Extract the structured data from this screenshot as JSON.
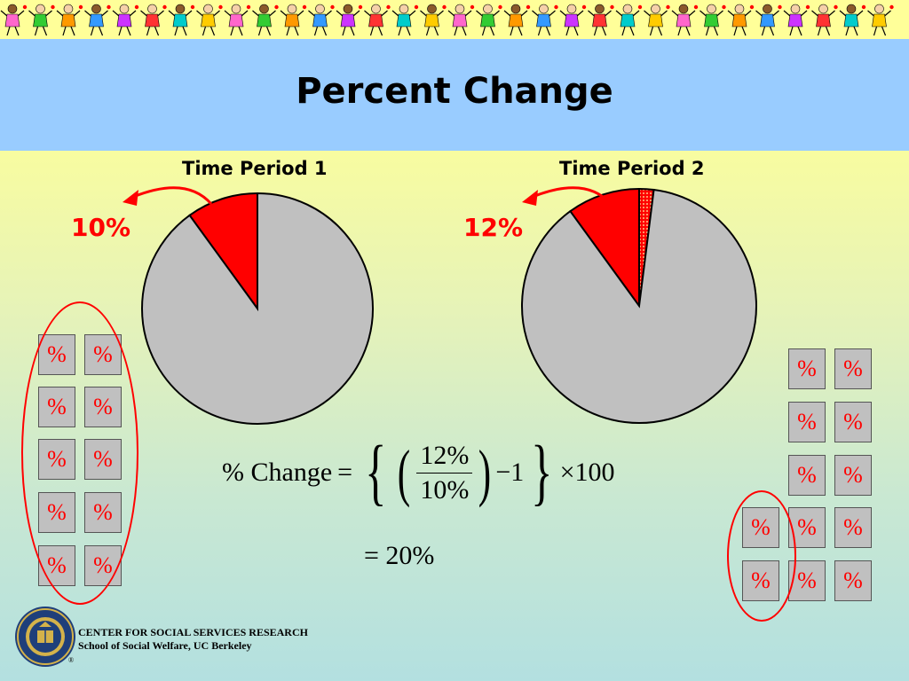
{
  "title": "Percent Change",
  "colors": {
    "accent": "#ff0000",
    "pie_gray": "#c0c0c0",
    "header_blue": "#99ccff",
    "banner_yellow": "#ffff99"
  },
  "chart_data": [
    {
      "type": "pie",
      "title": "Time Period 1",
      "highlight_label": "10%",
      "slices": [
        {
          "value": 10,
          "color": "#ff0000",
          "pattern": "solid"
        },
        {
          "value": 90,
          "color": "#c0c0c0",
          "pattern": "solid"
        }
      ]
    },
    {
      "type": "pie",
      "title": "Time Period 2",
      "highlight_label": "12%",
      "slices": [
        {
          "value": 10,
          "color": "#ff0000",
          "pattern": "solid"
        },
        {
          "value": 2,
          "color": "#ff0000",
          "pattern": "dotted"
        },
        {
          "value": 88,
          "color": "#c0c0c0",
          "pattern": "solid"
        }
      ]
    }
  ],
  "percent_symbol": "%",
  "formula": {
    "lhs": "% Change",
    "equals": "=",
    "numerator": "12%",
    "denominator": "10%",
    "minus_one": "−1",
    "times": "×100",
    "result": "= 20%"
  },
  "footer": {
    "org": "CENTER FOR SOCIAL SERVICES RESEARCH",
    "school": "School of Social Welfare, UC Berkeley",
    "registered": "®"
  },
  "logo_icon": "uc-seal-icon",
  "banner_icon": "dancing-children-icon"
}
